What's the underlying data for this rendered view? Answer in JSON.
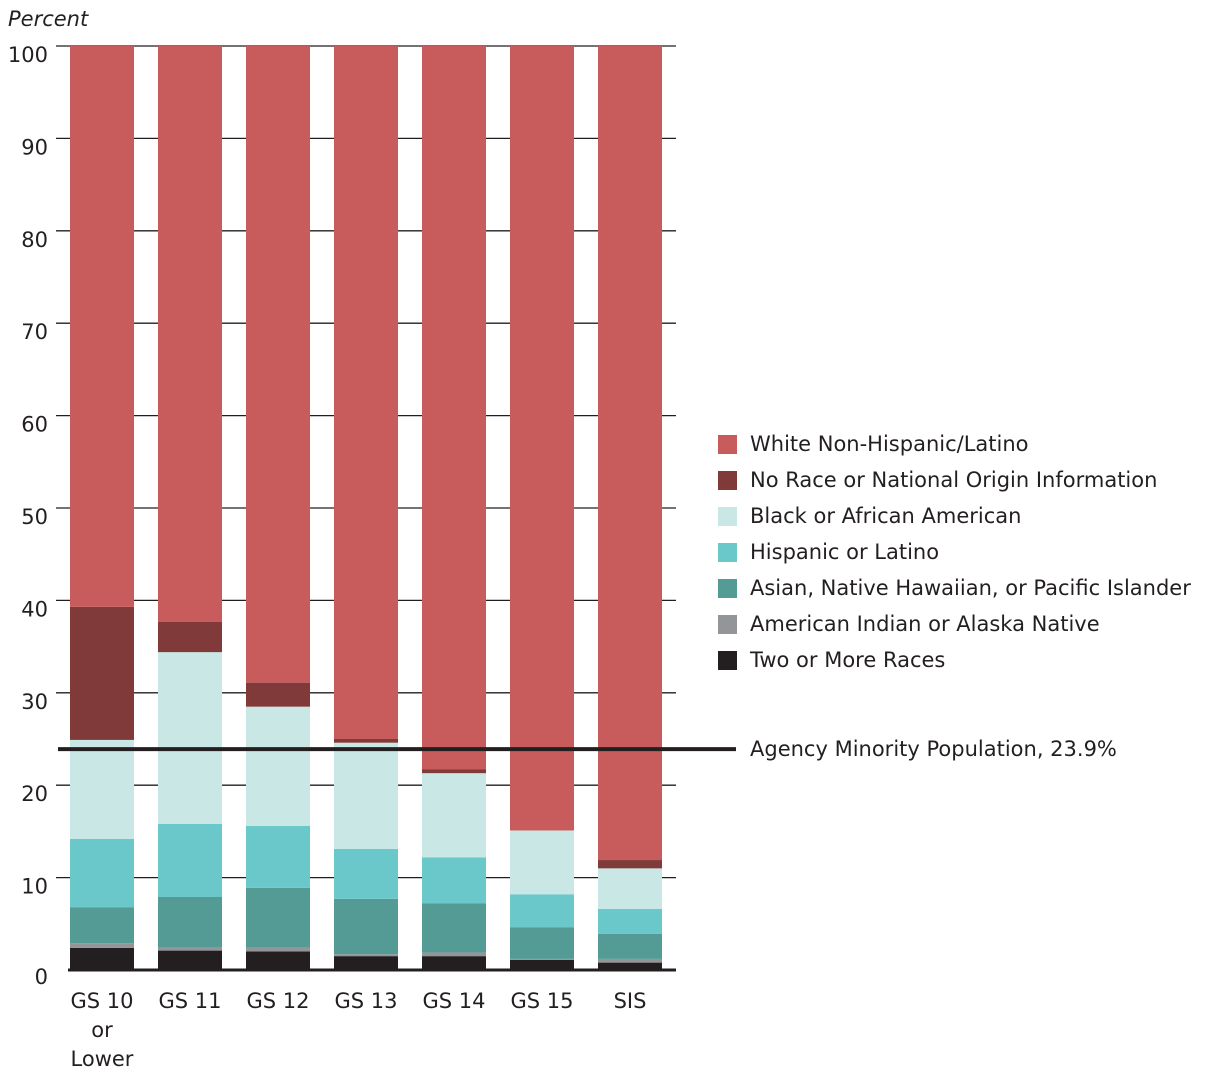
{
  "chart_data": {
    "type": "bar",
    "stacked": true,
    "ylabel": "Percent",
    "ylim": [
      0,
      100
    ],
    "y_ticks": [
      "0",
      "10",
      "20",
      "30",
      "40",
      "50",
      "60",
      "70",
      "80",
      "90",
      "100"
    ],
    "categories": [
      [
        "GS 10",
        "or",
        "Lower"
      ],
      [
        "GS 11"
      ],
      [
        "GS 12"
      ],
      [
        "GS 13"
      ],
      [
        "GS 14"
      ],
      [
        "GS 15"
      ],
      [
        "SIS"
      ]
    ],
    "series": [
      {
        "name": "Two or More Races",
        "color": "#231f20",
        "values": [
          2.4,
          2.1,
          2.0,
          1.5,
          1.5,
          1.1,
          0.8
        ]
      },
      {
        "name": "American Indian or Alaska Native",
        "color": "#939598",
        "values": [
          0.5,
          0.3,
          0.4,
          0.2,
          0.4,
          0.1,
          0.4
        ]
      },
      {
        "name": "Asian, Native Hawaiian, or Pacific Islander",
        "color": "#559b95",
        "values": [
          3.9,
          5.5,
          6.5,
          6.0,
          5.3,
          3.4,
          2.7
        ]
      },
      {
        "name": "Hispanic or Latino",
        "color": "#6ac8cb",
        "values": [
          7.4,
          7.9,
          6.7,
          5.4,
          5.0,
          3.6,
          2.7
        ]
      },
      {
        "name": "Black or African American",
        "color": "#c9e8e5",
        "values": [
          10.7,
          18.6,
          12.9,
          11.5,
          9.1,
          6.9,
          4.4
        ]
      },
      {
        "name": "No Race or National Origin Information",
        "color": "#7f3a39",
        "values": [
          14.4,
          3.3,
          2.6,
          0.4,
          0.4,
          0.0,
          0.9
        ]
      },
      {
        "name": "White Non-Hispanic/Latino",
        "color": "#c85b5b",
        "values": [
          60.7,
          62.3,
          68.9,
          75.0,
          78.3,
          84.9,
          88.1
        ]
      }
    ],
    "legend_order": [
      "White Non-Hispanic/Latino",
      "No Race or National Origin Information",
      "Black or African American",
      "Hispanic or Latino",
      "Asian, Native Hawaiian, or Pacific Islander",
      "American Indian or Alaska Native",
      "Two or More Races"
    ],
    "legend_position": "right",
    "grid": false,
    "reference_line": {
      "value": 23.9,
      "label": "Agency Minority Population, 23.9%",
      "color": "#231f20"
    }
  }
}
